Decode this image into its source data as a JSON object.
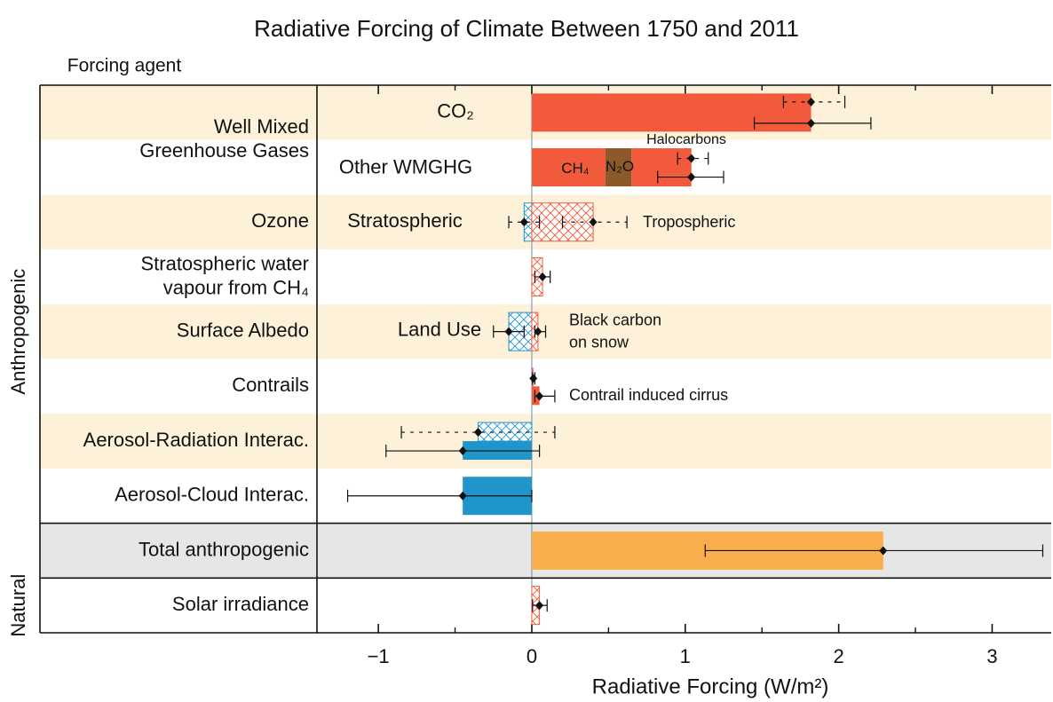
{
  "chart_data": {
    "type": "bar",
    "orientation": "horizontal",
    "title": "Radiative Forcing of Climate Between 1750 and 2011",
    "category_header": "Forcing agent",
    "xlabel": "Radiative Forcing (W/m²)",
    "xlim": [
      -1.4,
      3.385
    ],
    "xticks": [
      {
        "value": -1,
        "label": "−1"
      },
      0,
      1,
      2,
      3
    ],
    "xminorticks": [
      -0.5,
      0.5,
      1.5,
      2.5
    ],
    "stripe_color": "#fdf2d9",
    "accent_color": "#f15a3a",
    "groups": [
      {
        "name": "Anthropogenic"
      },
      {
        "name": "Natural"
      }
    ],
    "rows": [
      {
        "label": [
          "Well Mixed",
          "Greenhouse Gases"
        ],
        "tracks": [
          {
            "label": "CO₂",
            "bars": [
              {
                "value": 1.82,
                "color": "#f15a3a"
              }
            ],
            "errors": [
              {
                "center": 1.82,
                "low": 1.64,
                "high": 2.04,
                "style": "dashed"
              },
              {
                "center": 1.82,
                "low": 1.45,
                "high": 2.21,
                "style": "solid"
              }
            ]
          },
          {
            "label": "Other WMGHG",
            "stacked": true,
            "bars": [
              {
                "value": 0.48,
                "color": "#f15a3a",
                "label": "CH₄"
              },
              {
                "value": 0.17,
                "color": "#8c5a2a",
                "label": "N₂O"
              },
              {
                "value": 0.39,
                "color": "#f15a3a",
                "label": "Halocarbons"
              }
            ],
            "errors": [
              {
                "center": 1.04,
                "low": 0.95,
                "high": 1.15,
                "style": "dashed"
              },
              {
                "center": 1.04,
                "low": 0.82,
                "high": 1.25,
                "style": "solid"
              }
            ]
          }
        ]
      },
      {
        "label": [
          "Ozone"
        ],
        "tracks": [
          {
            "label": "Stratospheric",
            "bars": [
              {
                "value": -0.05,
                "color": "#1f95c9",
                "hatch": true
              },
              {
                "value": 0.4,
                "color": "#f15a3a",
                "hatch": true,
                "label": "Tropospheric"
              }
            ],
            "errors": [
              {
                "center": -0.05,
                "low": -0.15,
                "high": 0.05,
                "style": "dashed"
              },
              {
                "center": 0.4,
                "low": 0.2,
                "high": 0.62,
                "style": "dashed"
              }
            ]
          }
        ]
      },
      {
        "label": [
          "Stratospheric water",
          "vapour from CH₄"
        ],
        "tracks": [
          {
            "bars": [
              {
                "value": 0.07,
                "color": "#f15a3a",
                "hatch": true
              }
            ],
            "errors": [
              {
                "center": 0.07,
                "low": 0.02,
                "high": 0.12,
                "style": "solid"
              }
            ]
          }
        ]
      },
      {
        "label": [
          "Surface Albedo"
        ],
        "tracks": [
          {
            "label": "Land Use",
            "bars": [
              {
                "value": -0.15,
                "color": "#1f95c9",
                "hatch": true
              },
              {
                "value": 0.04,
                "color": "#f15a3a",
                "hatch": true,
                "label": "Black carbon on snow"
              }
            ],
            "errors": [
              {
                "center": -0.15,
                "low": -0.25,
                "high": -0.05,
                "style": "solid"
              },
              {
                "center": 0.04,
                "low": 0.02,
                "high": 0.09,
                "style": "solid"
              }
            ]
          }
        ]
      },
      {
        "label": [
          "Contrails"
        ],
        "tracks": [
          {
            "bars": [
              {
                "value": 0.01,
                "color": "#f15a3a"
              },
              {
                "value": 0.05,
                "color": "#f15a3a",
                "label": "Contrail induced cirrus"
              }
            ],
            "errors": [
              {
                "center": 0.01,
                "low": 0.005,
                "high": 0.02,
                "style": "solid"
              },
              {
                "center": 0.05,
                "low": 0.02,
                "high": 0.15,
                "style": "solid"
              }
            ]
          }
        ]
      },
      {
        "label": [
          "Aerosol-Radiation Interac."
        ],
        "tracks": [
          {
            "bars": [
              {
                "value": -0.35,
                "color": "#1f95c9",
                "hatch": true
              },
              {
                "value": -0.45,
                "color": "#1f95c9"
              }
            ],
            "errors": [
              {
                "center": -0.35,
                "low": -0.85,
                "high": 0.15,
                "style": "dashed"
              },
              {
                "center": -0.45,
                "low": -0.95,
                "high": 0.05,
                "style": "solid"
              }
            ]
          }
        ]
      },
      {
        "label": [
          "Aerosol-Cloud Interac."
        ],
        "tracks": [
          {
            "bars": [
              {
                "value": -0.45,
                "color": "#1f95c9"
              }
            ],
            "errors": [
              {
                "center": -0.45,
                "low": -1.2,
                "high": 0,
                "style": "solid"
              }
            ]
          }
        ]
      },
      {
        "label": [
          "Total anthropogenic"
        ],
        "color": "#f9ae4d",
        "background": "#e6e6e6",
        "tracks": [
          {
            "bars": [
              {
                "value": 2.29,
                "color": "#f9ae4d"
              }
            ],
            "errors": [
              {
                "center": 2.29,
                "low": 1.13,
                "high": 3.33,
                "style": "solid"
              }
            ]
          }
        ]
      },
      {
        "label": [
          "Solar irradiance"
        ],
        "tracks": [
          {
            "bars": [
              {
                "value": 0.05,
                "color": "#f15a3a",
                "hatch": true
              }
            ],
            "errors": [
              {
                "center": 0.05,
                "low": 0.005,
                "high": 0.1,
                "style": "solid"
              }
            ]
          }
        ]
      }
    ]
  }
}
